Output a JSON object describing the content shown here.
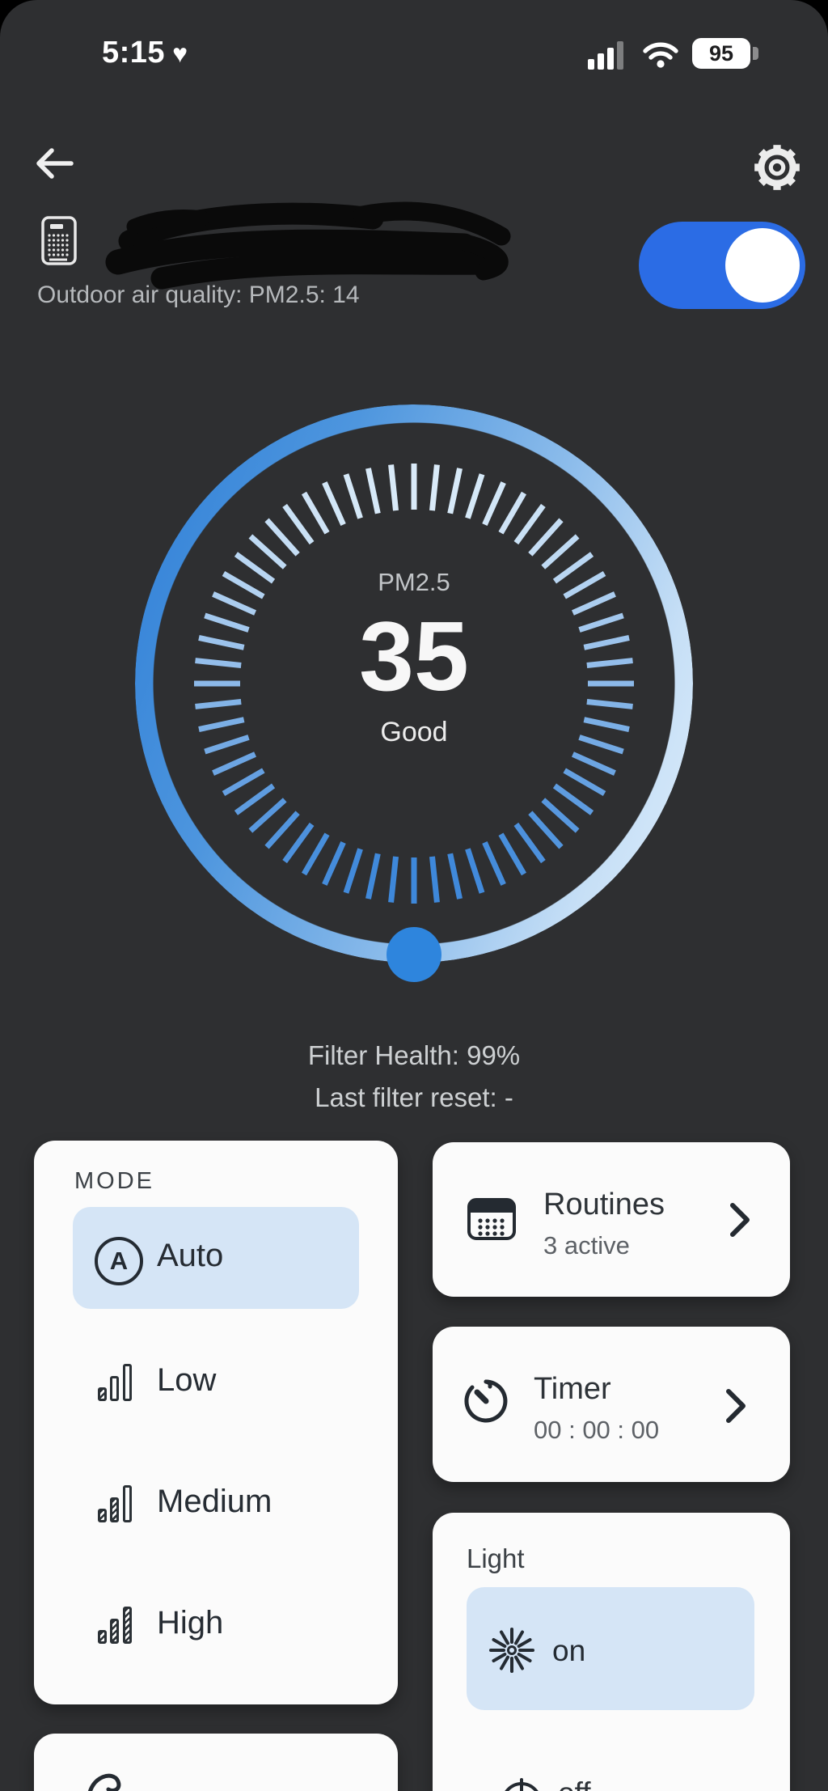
{
  "status_bar": {
    "time": "5:15",
    "heart": "♥",
    "battery_percent": "95"
  },
  "device": {
    "outdoor_air_quality": "Outdoor air quality: PM2.5: 14",
    "power": "on"
  },
  "gauge": {
    "label": "PM2.5",
    "value": "35",
    "status": "Good"
  },
  "filter": {
    "health_text": "Filter Health: 99%",
    "last_reset_text": "Last filter reset: -"
  },
  "mode_card": {
    "title": "MODE",
    "options": [
      {
        "label": "Auto",
        "selected": true
      },
      {
        "label": "Low",
        "selected": false
      },
      {
        "label": "Medium",
        "selected": false
      },
      {
        "label": "High",
        "selected": false
      }
    ]
  },
  "routines_card": {
    "title": "Routines",
    "subtitle": "3 active"
  },
  "timer_card": {
    "title": "Timer",
    "value": "00 : 00 : 00"
  },
  "light_card": {
    "title": "Light",
    "options": [
      {
        "label": "on",
        "selected": true
      },
      {
        "label": "off",
        "selected": false
      }
    ]
  },
  "colors": {
    "background": "#2e2f31",
    "card": "#fbfbfb",
    "accent_blue": "#2e85dd",
    "toggle_blue": "#2b6ce5",
    "chip_blue": "#d5e5f6"
  },
  "gauge_ticks": {
    "count": 60,
    "top_color": "#d9eaf8",
    "bottom_color": "#3e88da"
  }
}
